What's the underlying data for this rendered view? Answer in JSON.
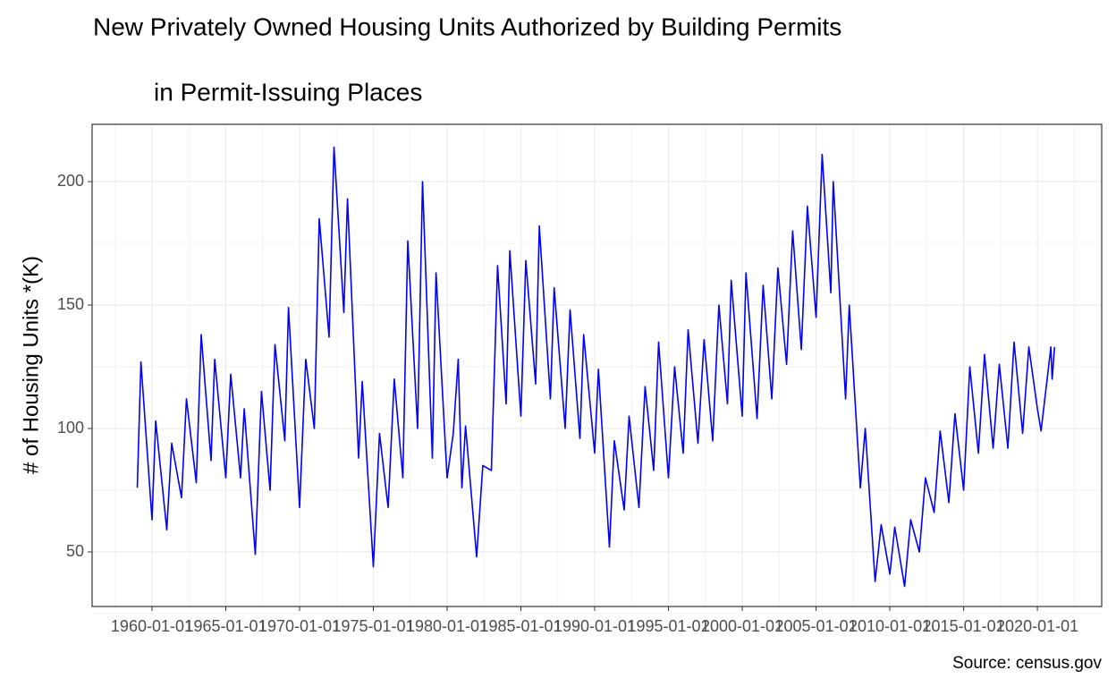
{
  "chart_data": {
    "type": "line",
    "title": [
      "New Privately Owned Housing Units Authorized by Building Permits",
      "in Permit-Issuing Places"
    ],
    "y_label": "# of Housing Units *(K)",
    "caption": "Source: census.gov",
    "x": [
      "1959-01-01",
      "1959-04-01",
      "1960-01-01",
      "1960-04-01",
      "1961-01-01",
      "1961-05-01",
      "1962-01-01",
      "1962-05-01",
      "1963-01-01",
      "1963-05-01",
      "1964-01-01",
      "1964-04-01",
      "1965-01-01",
      "1965-05-01",
      "1966-01-01",
      "1966-04-01",
      "1967-01-01",
      "1967-06-01",
      "1968-01-01",
      "1968-05-01",
      "1969-01-01",
      "1969-04-01",
      "1970-01-01",
      "1970-06-01",
      "1971-01-01",
      "1971-05-01",
      "1972-01-01",
      "1972-05-01",
      "1973-01-01",
      "1973-04-01",
      "1974-01-01",
      "1974-04-01",
      "1975-01-01",
      "1975-06-01",
      "1976-01-01",
      "1976-06-01",
      "1977-01-01",
      "1977-05-01",
      "1978-01-01",
      "1978-05-01",
      "1979-01-01",
      "1979-04-01",
      "1980-01-01",
      "1980-06-01",
      "1980-10-01",
      "1981-01-01",
      "1981-04-01",
      "1982-01-01",
      "1982-06-01",
      "1983-01-01",
      "1983-06-01",
      "1984-01-01",
      "1984-04-01",
      "1985-01-01",
      "1985-05-01",
      "1986-01-01",
      "1986-04-01",
      "1987-01-01",
      "1987-04-01",
      "1988-01-01",
      "1988-05-01",
      "1989-01-01",
      "1989-04-01",
      "1990-01-01",
      "1990-04-01",
      "1991-01-01",
      "1991-05-01",
      "1992-01-01",
      "1992-05-01",
      "1993-01-01",
      "1993-06-01",
      "1994-01-01",
      "1994-05-01",
      "1995-01-01",
      "1995-06-01",
      "1996-01-01",
      "1996-05-01",
      "1997-01-01",
      "1997-06-01",
      "1998-01-01",
      "1998-06-01",
      "1999-01-01",
      "1999-04-01",
      "2000-01-01",
      "2000-04-01",
      "2001-01-01",
      "2001-06-01",
      "2002-01-01",
      "2002-06-01",
      "2003-01-01",
      "2003-06-01",
      "2004-01-01",
      "2004-06-01",
      "2005-01-01",
      "2005-06-01",
      "2006-01-01",
      "2006-03-01",
      "2007-01-01",
      "2007-04-01",
      "2008-01-01",
      "2008-05-01",
      "2009-01-01",
      "2009-06-01",
      "2010-01-01",
      "2010-05-01",
      "2011-01-01",
      "2011-06-01",
      "2012-01-01",
      "2012-06-01",
      "2013-01-01",
      "2013-06-01",
      "2014-01-01",
      "2014-06-01",
      "2015-01-01",
      "2015-06-01",
      "2016-01-01",
      "2016-06-01",
      "2017-01-01",
      "2017-06-01",
      "2018-01-01",
      "2018-06-01",
      "2019-01-01",
      "2019-06-01",
      "2020-01-01",
      "2020-04-01",
      "2020-12-01",
      "2021-01-01",
      "2021-03-01"
    ],
    "series": [
      {
        "color": "#0000ff",
        "values": [
          76,
          127,
          63,
          103,
          59,
          94,
          72,
          112,
          78,
          138,
          87,
          128,
          80,
          122,
          80,
          108,
          49,
          115,
          75,
          134,
          95,
          149,
          68,
          128,
          100,
          185,
          137,
          214,
          147,
          193,
          88,
          119,
          44,
          98,
          68,
          120,
          80,
          176,
          100,
          200,
          88,
          163,
          80,
          98,
          128,
          76,
          101,
          48,
          85,
          83,
          166,
          110,
          172,
          105,
          168,
          118,
          182,
          112,
          157,
          100,
          148,
          96,
          138,
          90,
          124,
          52,
          95,
          67,
          105,
          68,
          117,
          83,
          135,
          80,
          125,
          90,
          140,
          94,
          136,
          95,
          150,
          110,
          160,
          105,
          163,
          104,
          158,
          112,
          165,
          126,
          180,
          132,
          190,
          145,
          211,
          155,
          200,
          112,
          150,
          76,
          100,
          38,
          61,
          41,
          60,
          36,
          63,
          50,
          80,
          66,
          99,
          70,
          106,
          75,
          125,
          90,
          130,
          92,
          126,
          92,
          135,
          98,
          133,
          108,
          99,
          133,
          120,
          133
        ]
      }
    ],
    "xlim": [
      "1955-12-10",
      "2024-05-10"
    ],
    "xticks": [
      "1960-01-01",
      "1965-01-01",
      "1970-01-01",
      "1975-01-01",
      "1980-01-01",
      "1985-01-01",
      "1990-01-01",
      "1995-01-01",
      "2000-01-01",
      "2005-01-01",
      "2010-01-01",
      "2015-01-01",
      "2020-01-01"
    ],
    "ylim": [
      27.9,
      223.2
    ],
    "yticks": [
      50,
      100,
      150,
      200
    ],
    "grid": true
  }
}
